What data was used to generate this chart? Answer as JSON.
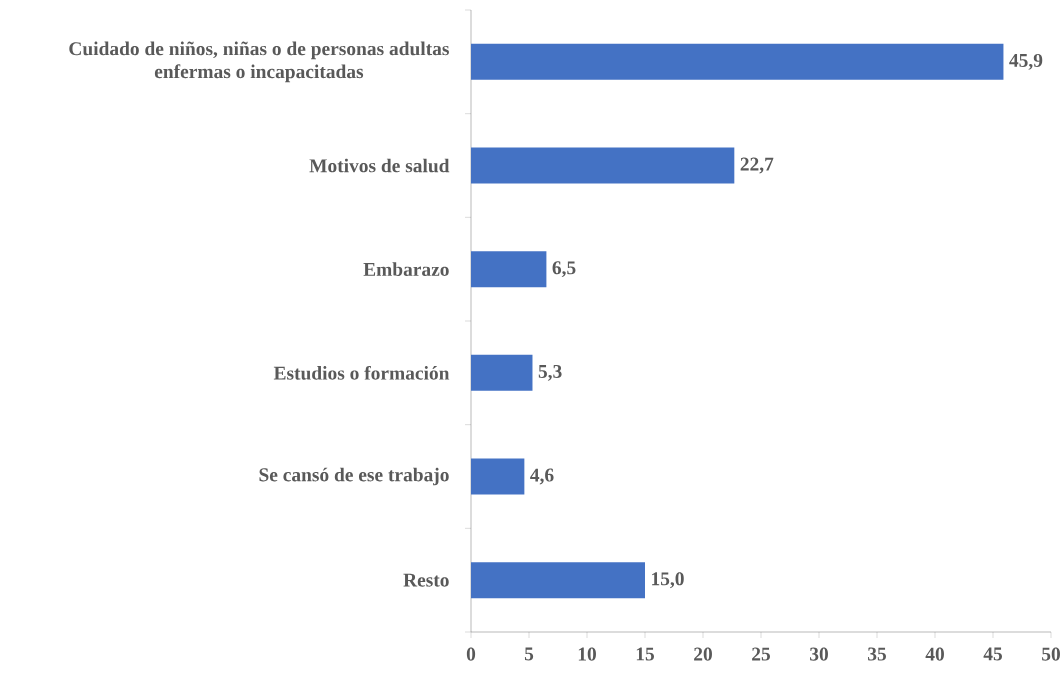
{
  "chart_data": {
    "type": "bar",
    "orientation": "horizontal",
    "categories": [
      "Cuidado de niños, niñas o de personas adultas enfermas o incapacitadas",
      "Motivos de salud",
      "Embarazo",
      "Estudios o formación",
      "Se cansó de ese trabajo",
      "Resto"
    ],
    "values": [
      45.9,
      22.7,
      6.5,
      5.3,
      4.6,
      15.0
    ],
    "value_labels": [
      "45,9",
      "22,7",
      "6,5",
      "5,3",
      "4,6",
      "15,0"
    ],
    "color": "#4472c4",
    "xlim": [
      0,
      50
    ],
    "xticks": [
      0,
      5,
      10,
      15,
      20,
      25,
      30,
      35,
      40,
      45,
      50
    ],
    "grid": false
  }
}
